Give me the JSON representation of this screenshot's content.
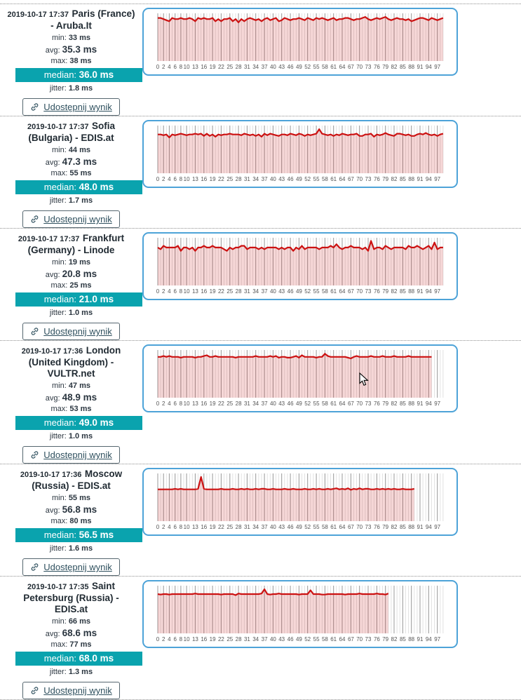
{
  "labels": {
    "min": "min:",
    "avg": "avg:",
    "max": "max:",
    "median": "median:",
    "jitter": "jitter:",
    "share": "Udostępnij wynik",
    "share_icon": "link-icon"
  },
  "colors": {
    "accent_teal": "#0aa3ae",
    "chart_border_blue": "#4da3d8",
    "line_red": "#cc1111",
    "fill_pink": "rgba(204,17,17,0.17)",
    "grid_minor": "#d9d9d9",
    "grid_major": "#999999",
    "text_dark": "#2b3640"
  },
  "panels": [
    {
      "timestamp": "2019-10-17 17:37",
      "name": "Paris (France) - Aruba.It",
      "min": "33 ms",
      "avg": "35.3 ms",
      "max": "38 ms",
      "median": "36.0 ms",
      "jitter": "1.8 ms"
    },
    {
      "timestamp": "2019-10-17 17:37",
      "name": "Sofia (Bulgaria) - EDIS.at",
      "min": "44 ms",
      "avg": "47.3 ms",
      "max": "55 ms",
      "median": "48.0 ms",
      "jitter": "1.7 ms"
    },
    {
      "timestamp": "2019-10-17 17:37",
      "name": "Frankfurt (Germany) - Linode",
      "min": "19 ms",
      "avg": "20.8 ms",
      "max": "25 ms",
      "median": "21.0 ms",
      "jitter": "1.0 ms"
    },
    {
      "timestamp": "2019-10-17 17:36",
      "name": "London (United Kingdom) - VULTR.net",
      "min": "47 ms",
      "avg": "48.9 ms",
      "max": "53 ms",
      "median": "49.0 ms",
      "jitter": "1.0 ms"
    },
    {
      "timestamp": "2019-10-17 17:36",
      "name": "Moscow (Russia) - EDIS.at",
      "min": "55 ms",
      "avg": "56.8 ms",
      "max": "80 ms",
      "median": "56.5 ms",
      "jitter": "1.6 ms"
    },
    {
      "timestamp": "2019-10-17 17:35",
      "name": "Saint Petersburg (Russia) - EDIS.at",
      "min": "66 ms",
      "avg": "68.6 ms",
      "max": "77 ms",
      "median": "68.0 ms",
      "jitter": "1.3 ms"
    }
  ],
  "chart_data": {
    "type": "line",
    "unit": "ms",
    "grid": true,
    "legend": false,
    "total_slots": 100,
    "x_tick_labels": [
      "0",
      "2",
      "4",
      "6",
      "8",
      "10",
      "13",
      "16",
      "19",
      "22",
      "25",
      "28",
      "31",
      "34",
      "37",
      "40",
      "43",
      "46",
      "49",
      "52",
      "55",
      "58",
      "61",
      "64",
      "67",
      "70",
      "73",
      "76",
      "79",
      "82",
      "85",
      "88",
      "91",
      "94",
      "97"
    ],
    "charts": [
      {
        "host": "Paris (France) - Aruba.It",
        "ylim": [
          0,
          40
        ],
        "values": [
          37,
          37,
          36,
          35,
          34,
          37,
          36,
          36,
          37,
          36,
          36,
          37,
          36,
          34,
          37,
          36,
          37,
          36,
          36,
          37,
          34,
          36,
          34,
          36,
          36,
          37,
          34,
          36,
          33,
          36,
          34,
          36,
          37,
          36,
          35,
          36,
          34,
          36,
          37,
          35,
          36,
          37,
          34,
          35,
          37,
          36,
          35,
          36,
          36,
          37,
          36,
          35,
          37,
          36,
          35,
          37,
          36,
          37,
          36,
          35,
          36,
          37,
          35,
          36,
          36,
          37,
          37,
          36,
          35,
          36,
          36,
          37,
          38,
          36,
          35,
          36,
          37,
          36,
          37,
          38,
          36,
          35,
          36,
          37,
          36,
          36,
          35,
          36,
          34,
          35,
          36,
          37,
          37,
          36,
          35,
          37,
          36,
          35,
          36,
          37
        ]
      },
      {
        "host": "Sofia (Bulgaria) - EDIS.at",
        "ylim": [
          0,
          58
        ],
        "values": [
          48,
          48,
          47,
          48,
          44,
          48,
          47,
          48,
          49,
          48,
          47,
          48,
          48,
          49,
          48,
          49,
          46,
          49,
          46,
          48,
          45,
          48,
          47,
          48,
          48,
          49,
          48,
          48,
          48,
          47,
          49,
          48,
          47,
          48,
          46,
          48,
          45,
          49,
          47,
          49,
          48,
          47,
          46,
          48,
          48,
          47,
          49,
          48,
          47,
          49,
          48,
          46,
          48,
          47,
          48,
          49,
          55,
          49,
          48,
          47,
          48,
          46,
          48,
          47,
          49,
          48,
          47,
          48,
          48,
          49,
          46,
          46,
          48,
          48,
          49,
          45,
          48,
          47,
          48,
          50,
          48,
          47,
          46,
          49,
          49,
          48,
          47,
          48,
          46,
          46,
          48,
          49,
          48,
          50,
          48,
          47,
          48,
          46,
          48,
          49
        ]
      },
      {
        "host": "Frankfurt (Germany) - Linode",
        "ylim": [
          0,
          26
        ],
        "values": [
          21,
          20,
          22,
          21,
          21,
          21,
          21,
          22,
          19,
          21,
          21,
          20,
          21,
          19,
          21,
          21,
          22,
          21,
          21,
          22,
          21,
          21,
          21,
          20,
          19,
          21,
          20,
          21,
          21,
          22,
          22,
          20,
          21,
          21,
          21,
          20,
          21,
          20,
          21,
          21,
          21,
          21,
          20,
          21,
          20,
          21,
          21,
          19,
          21,
          20,
          22,
          20,
          21,
          21,
          21,
          21,
          20,
          21,
          21,
          21,
          22,
          21,
          23,
          21,
          20,
          21,
          21,
          22,
          21,
          21,
          21,
          20,
          21,
          19,
          25,
          20,
          21,
          21,
          20,
          22,
          21,
          20,
          21,
          21,
          21,
          21,
          20,
          22,
          21,
          21,
          22,
          21,
          20,
          21,
          22,
          20,
          24,
          20,
          21,
          21
        ]
      },
      {
        "host": "London (United Kingdom) - VULTR.net",
        "ylim": [
          0,
          56
        ],
        "values": [
          49,
          49,
          50,
          49,
          50,
          49,
          49,
          49,
          48,
          49,
          49,
          49,
          49,
          48,
          49,
          49,
          50,
          51,
          49,
          49,
          50,
          49,
          49,
          49,
          49,
          49,
          49,
          48,
          49,
          49,
          49,
          49,
          49,
          49,
          50,
          49,
          49,
          49,
          49,
          50,
          49,
          50,
          48,
          49,
          49,
          48,
          48,
          49,
          50,
          48,
          51,
          49,
          49,
          49,
          49,
          48,
          49,
          49,
          53,
          50,
          49,
          49,
          49,
          49,
          49,
          49,
          48,
          47,
          49,
          50,
          49,
          49,
          49,
          49,
          50,
          49,
          49,
          49,
          50,
          49,
          49,
          49,
          50,
          49,
          49,
          49,
          49,
          50,
          49,
          49,
          49,
          49,
          49,
          49,
          49,
          49
        ]
      },
      {
        "host": "Moscow (Russia) - EDIS.at",
        "ylim": [
          0,
          84
        ],
        "values": [
          56,
          56,
          56,
          56,
          56,
          56,
          57,
          56,
          57,
          56,
          56,
          56,
          56,
          56,
          57,
          80,
          57,
          56,
          56,
          56,
          56,
          56,
          57,
          56,
          56,
          56,
          57,
          56,
          56,
          57,
          56,
          57,
          56,
          56,
          57,
          56,
          57,
          57,
          56,
          56,
          57,
          56,
          56,
          56,
          57,
          56,
          56,
          57,
          56,
          56,
          56,
          57,
          56,
          56,
          57,
          56,
          57,
          56,
          56,
          57,
          56,
          57,
          58,
          56,
          57,
          56,
          58,
          55,
          57,
          56,
          58,
          56,
          57,
          57,
          56,
          56,
          57,
          56,
          57,
          56,
          57,
          56,
          57,
          56,
          56,
          57,
          56,
          56,
          56,
          57
        ]
      },
      {
        "host": "Saint Petersburg (Russia) - EDIS.at",
        "ylim": [
          0,
          81
        ],
        "values": [
          68,
          67,
          68,
          68,
          67,
          68,
          68,
          68,
          68,
          68,
          68,
          68,
          68,
          69,
          68,
          68,
          68,
          68,
          68,
          68,
          68,
          68,
          67,
          68,
          68,
          68,
          68,
          66,
          69,
          68,
          68,
          68,
          68,
          68,
          68,
          68,
          69,
          77,
          68,
          67,
          68,
          68,
          69,
          68,
          68,
          68,
          68,
          68,
          68,
          67,
          68,
          68,
          68,
          75,
          68,
          68,
          68,
          67,
          67,
          68,
          68,
          68,
          68,
          68,
          68,
          67,
          68,
          68,
          68,
          68,
          69,
          68,
          68,
          68,
          68,
          68,
          69,
          68,
          68,
          67,
          69
        ]
      }
    ]
  }
}
